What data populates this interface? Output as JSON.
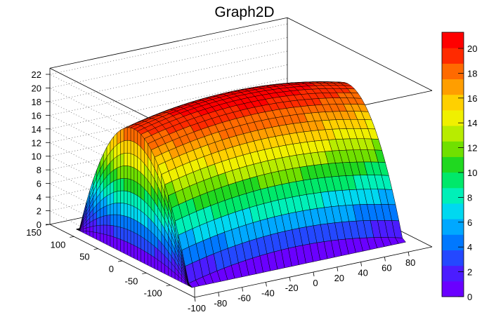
{
  "chart_data": {
    "type": "surface",
    "title": "Graph2D",
    "xlim": [
      -100,
      100
    ],
    "ylim": [
      -150,
      150
    ],
    "zlim": [
      0,
      22
    ],
    "x_ticks": [
      -100,
      -80,
      -60,
      -40,
      -20,
      0,
      20,
      40,
      60,
      80
    ],
    "y_ticks": [
      -100,
      -50,
      0,
      50,
      100,
      150
    ],
    "z_ticks": [
      0,
      2,
      4,
      6,
      8,
      10,
      12,
      14,
      16,
      18,
      20,
      22
    ],
    "colorbar": {
      "min": 0,
      "max": 21.3,
      "ticks": [
        0,
        2,
        4,
        6,
        8,
        10,
        12,
        14,
        16,
        18,
        20
      ],
      "colors": [
        "#6a00ff",
        "#4b1cff",
        "#2448ff",
        "#0078ff",
        "#00a8ff",
        "#00d8f0",
        "#00f0b8",
        "#00e86a",
        "#20d820",
        "#70e000",
        "#b8ec00",
        "#f0f000",
        "#ffd000",
        "#ff9e00",
        "#ff6a00",
        "#ff2a00",
        "#ff0000"
      ]
    },
    "surface": {
      "description_function": "z = 21 * (1 - (y/120)^2 - 0.12*(x/100)^2), clipped to 0",
      "x_range": [
        -90,
        90
      ],
      "y_range": [
        -120,
        120
      ],
      "max_value": 21
    },
    "grid": true
  }
}
